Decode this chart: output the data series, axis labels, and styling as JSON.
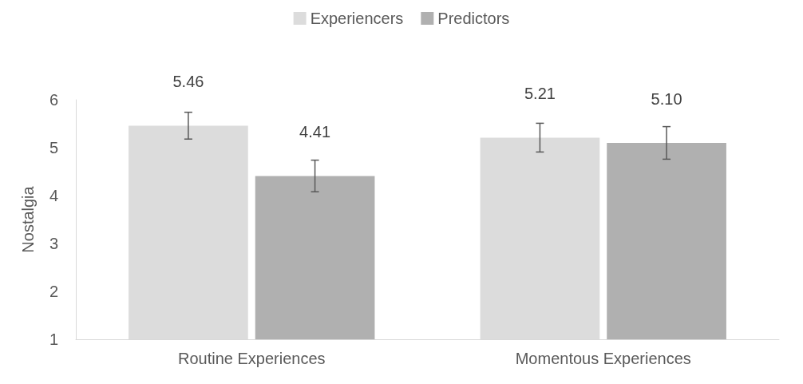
{
  "chart_data": {
    "type": "bar",
    "ylabel": "Nostalgia",
    "categories": [
      "Routine Experiences",
      "Momentous Experiences"
    ],
    "series": [
      {
        "name": "Experiencers",
        "color": "#dcdcdc",
        "values": [
          5.46,
          5.21
        ],
        "errors": [
          0.28,
          0.3
        ],
        "value_labels": [
          "5.46",
          "5.21"
        ]
      },
      {
        "name": "Predictors",
        "color": "#b0b0b0",
        "values": [
          4.41,
          5.1
        ],
        "errors": [
          0.33,
          0.34
        ],
        "value_labels": [
          "4.41",
          "5.10"
        ]
      }
    ],
    "ylim": [
      1,
      6
    ],
    "yticks": [
      1,
      2,
      3,
      4,
      5,
      6
    ],
    "grid": false,
    "legend": "top"
  }
}
